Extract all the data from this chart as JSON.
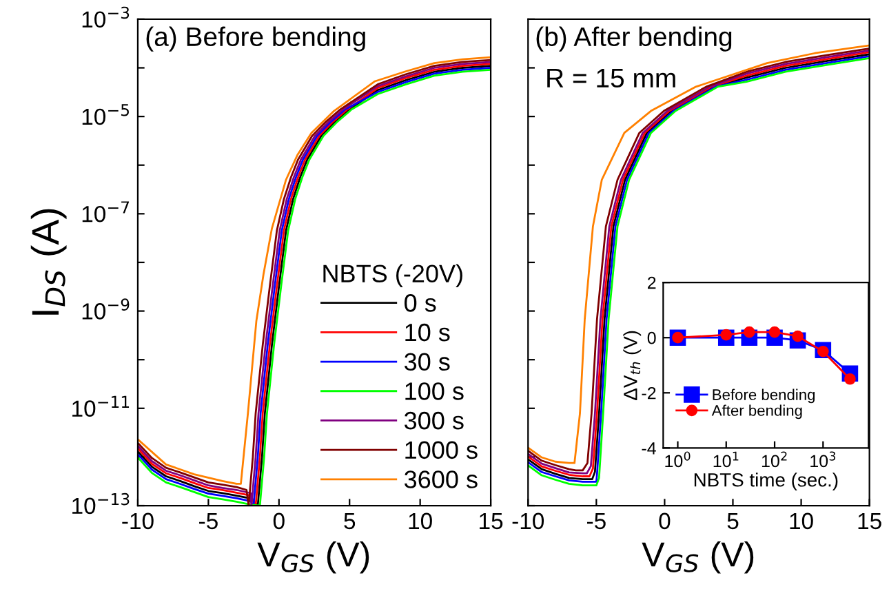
{
  "chart_data": [
    {
      "type": "line",
      "title": "(a) Before bending",
      "xlabel": "V$_{GS}$ (V)",
      "ylabel": "I$_{DS}$ (A)",
      "legend_title": "NBTS (-20V)",
      "legend": "bottom right",
      "log": "y",
      "xlim": [
        -10,
        15
      ],
      "xticks": [
        -10,
        -5,
        0,
        5,
        10,
        15
      ],
      "ylim": [
        1e-13,
        0.001
      ],
      "yticks": [
        {
          "value": 1e-13,
          "label": "10$^{−13}$"
        },
        {
          "value": 1e-12,
          "label": null
        },
        {
          "value": 1e-11,
          "label": "10$^{−11}$"
        },
        {
          "value": 1e-10,
          "label": null
        },
        {
          "value": 1e-09,
          "label": "10$^{−9}$"
        },
        {
          "value": 1e-08,
          "label": null
        },
        {
          "value": 1e-07,
          "label": "10$^{−7}$"
        },
        {
          "value": 1e-06,
          "label": null
        },
        {
          "value": 1e-05,
          "label": "10$^{−5}$"
        },
        {
          "value": 0.0001,
          "label": null
        },
        {
          "value": 0.001,
          "label": "10$^{−3}$"
        }
      ],
      "series": [
        {
          "name": "0 s",
          "color": "#000000",
          "x": [
            -10,
            -9,
            -8,
            -7,
            -6,
            -5,
            -4,
            -3,
            -2,
            -1.5,
            -1.2,
            -1,
            -0.5,
            0,
            0.5,
            1,
            1.5,
            2,
            3,
            4,
            5,
            7,
            9,
            11,
            13,
            15
          ],
          "values": [
            1.3e-12,
            6.3e-13,
            4e-13,
            3.2e-13,
            2.5e-13,
            2e-13,
            1.8e-13,
            1.6e-13,
            1.4e-13,
            1e-13,
            1e-12,
            7.9e-12,
            2e-10,
            3.2e-09,
            4.5e-08,
            2e-07,
            5.6e-07,
            1.3e-06,
            4e-06,
            7.9e-06,
            1.4e-05,
            3.5e-05,
            5.6e-05,
            8.3e-05,
            0.0001,
            0.00011
          ]
        },
        {
          "name": "10 s",
          "color": "#ff0000",
          "x": [
            -10,
            -9,
            -8,
            -7,
            -6,
            -5,
            -4,
            -3,
            -2,
            -1.65,
            -1.35,
            -1.15,
            -0.65,
            -0.15,
            0.35,
            0.85,
            1.35,
            1.85,
            2.85,
            3.85,
            4.85,
            7,
            9,
            11,
            13,
            15
          ],
          "values": [
            1.5e-12,
            7.2e-13,
            4.6e-13,
            3.7e-13,
            2.9e-13,
            2.3e-13,
            2.1e-13,
            1.84e-13,
            1.61e-13,
            1e-13,
            1e-12,
            7.9e-12,
            2e-10,
            3.2e-09,
            4.5e-08,
            2e-07,
            5.6e-07,
            1.3e-06,
            4e-06,
            7.9e-06,
            1.4e-05,
            3.85e-05,
            6.2e-05,
            9.1e-05,
            0.00011,
            0.000121
          ]
        },
        {
          "name": "30 s",
          "color": "#0000ff",
          "x": [
            -10,
            -9,
            -8,
            -7,
            -6,
            -5,
            -4,
            -3,
            -2,
            -1.8,
            -1.5,
            -1.3,
            -0.8,
            -0.3,
            0.2,
            0.7,
            1.2,
            1.7,
            2.7,
            3.7,
            4.7,
            7,
            9,
            11,
            13,
            15
          ],
          "values": [
            1.14e-12,
            5.5e-13,
            3.5e-13,
            2.8e-13,
            2.2e-13,
            1.76e-13,
            1.58e-13,
            1.41e-13,
            1.23e-13,
            1e-13,
            1e-12,
            7.9e-12,
            2e-10,
            3.2e-09,
            4.5e-08,
            2e-07,
            5.6e-07,
            1.3e-06,
            4e-06,
            7.9e-06,
            1.4e-05,
            3.2e-05,
            5.1e-05,
            7.6e-05,
            9.1e-05,
            0.0001
          ]
        },
        {
          "name": "100 s",
          "color": "#00ff00",
          "x": [
            -10,
            -9,
            -8,
            -7,
            -6,
            -5,
            -4,
            -3,
            -2,
            -1.35,
            -1.05,
            -0.85,
            -0.35,
            0.15,
            0.65,
            1.15,
            1.65,
            2.15,
            3.15,
            4.15,
            5.15,
            7,
            9,
            11,
            13,
            15
          ],
          "values": [
            9.8e-13,
            4.7e-13,
            3e-13,
            2.4e-13,
            1.9e-13,
            1.5e-13,
            1.35e-13,
            1.2e-13,
            1.05e-13,
            1e-13,
            1e-12,
            7.9e-12,
            2e-10,
            3.2e-09,
            4.5e-08,
            2e-07,
            5.6e-07,
            1.3e-06,
            4e-06,
            7.9e-06,
            1.4e-05,
            2.9e-05,
            4.6e-05,
            6.9e-05,
            8.3e-05,
            9.1e-05
          ]
        },
        {
          "name": "300 s",
          "color": "#800080",
          "x": [
            -10,
            -9,
            -8,
            -7,
            -6,
            -5,
            -4,
            -3,
            -2,
            -1.95,
            -1.65,
            -1.45,
            -0.95,
            -0.45,
            0.05,
            0.55,
            1.05,
            1.55,
            2.55,
            3.55,
            4.55,
            7,
            9,
            11,
            13,
            15
          ],
          "values": [
            1.7e-12,
            8.2e-13,
            5.2e-13,
            4.2e-13,
            3.3e-13,
            2.6e-13,
            2.3e-13,
            2.1e-13,
            1.8e-13,
            1e-13,
            1e-12,
            7.9e-12,
            2e-10,
            3.2e-09,
            4.5e-08,
            2e-07,
            5.6e-07,
            1.3e-06,
            4e-06,
            7.9e-06,
            1.4e-05,
            4.2e-05,
            6.7e-05,
            0.0001,
            0.00012,
            0.000132
          ]
        },
        {
          "name": "1000 s",
          "color": "#800000",
          "x": [
            -10,
            -9,
            -8,
            -7,
            -6,
            -5,
            -4,
            -3,
            -2.3,
            -2.15,
            -1.85,
            -1.65,
            -1.15,
            -0.65,
            -0.15,
            0.35,
            0.85,
            1.35,
            2.35,
            3.35,
            4.35,
            7,
            9,
            11,
            13,
            15
          ],
          "values": [
            1.95e-12,
            9.5e-13,
            6e-13,
            4.8e-13,
            3.8e-13,
            3e-13,
            2.7e-13,
            2.4e-13,
            2.1e-13,
            1e-13,
            1e-12,
            7.9e-12,
            2e-10,
            3.2e-09,
            4.5e-08,
            2e-07,
            5.6e-07,
            1.3e-06,
            4e-06,
            7.9e-06,
            1.4e-05,
            4.6e-05,
            7.4e-05,
            0.00011,
            0.000132,
            0.000145
          ]
        },
        {
          "name": "3600 s",
          "color": "#ff8000",
          "x": [
            -10,
            -8,
            -6,
            -4,
            -3,
            -2.7,
            -2.2,
            -1.6,
            -1.1,
            -0.5,
            0.5,
            1.3,
            2.3,
            3.9,
            6.8,
            9,
            11,
            13,
            15
          ],
          "values": [
            2.3e-12,
            7e-13,
            4.4e-13,
            3.2e-13,
            2.8e-13,
            2.8e-13,
            7.9e-12,
            6.3e-10,
            5.6e-09,
            5e-08,
            5e-07,
            1.6e-06,
            4.6e-06,
            1.3e-05,
            5.3e-05,
            8.5e-05,
            0.000125,
            0.00015,
            0.000165
          ]
        }
      ]
    },
    {
      "type": "line",
      "title": "(b) After bending",
      "xlabel": "V$_{GS}$ (V)",
      "annotations": [
        "R = 15 mm"
      ],
      "log": "y",
      "tick_labels": "x",
      "xlim": [
        -10,
        15
      ],
      "xticks": [
        -10,
        -5,
        0,
        5,
        10,
        15
      ],
      "ylim": [
        1e-13,
        0.001
      ],
      "yticks": [
        {
          "value": 1e-13,
          "label": null
        },
        {
          "value": 1e-12,
          "label": null
        },
        {
          "value": 1e-11,
          "label": null
        },
        {
          "value": 1e-10,
          "label": null
        },
        {
          "value": 1e-09,
          "label": null
        },
        {
          "value": 1e-08,
          "label": null
        },
        {
          "value": 1e-07,
          "label": null
        },
        {
          "value": 1e-06,
          "label": null
        },
        {
          "value": 1e-05,
          "label": null
        },
        {
          "value": 0.0001,
          "label": null
        },
        {
          "value": 0.001,
          "label": null
        }
      ],
      "series": [
        {
          "color": "#000000",
          "x": [
            -10,
            -9,
            -8,
            -7,
            -6,
            -5.3,
            -5.1,
            -4.8,
            -4.4,
            -3.75,
            -2.9,
            -1.3,
            0.5,
            3.6,
            6,
            8.85,
            12,
            15
          ],
          "values": [
            8.9e-13,
            5.6e-13,
            4.5e-13,
            3.7e-13,
            3.5e-13,
            3.5e-13,
            5e-13,
            7.9e-12,
            6.8e-10,
            5.5e-08,
            5e-07,
            4.6e-06,
            1.3e-05,
            4.1e-05,
            6.3e-05,
            0.0001,
            0.00014,
            0.00019
          ]
        },
        {
          "color": "#ff0000",
          "x": [
            -10,
            -9,
            -8,
            -7,
            -6,
            -5.5,
            -5.25,
            -4.95,
            -4.55,
            -3.9,
            -3.05,
            -1.45,
            0.35,
            3.45,
            6,
            8.85,
            12,
            15
          ],
          "values": [
            1.02e-12,
            6.4e-13,
            5.2e-13,
            4.3e-13,
            4e-13,
            4e-13,
            5.8e-13,
            7.9e-12,
            6.8e-10,
            5.5e-08,
            5e-07,
            4.6e-06,
            1.3e-05,
            4.1e-05,
            6.9e-05,
            0.00011,
            0.000154,
            0.00021
          ]
        },
        {
          "color": "#0000ff",
          "x": [
            -10,
            -9,
            -8,
            -7,
            -6,
            -5,
            -4.95,
            -4.65,
            -4.25,
            -3.6,
            -2.75,
            -1.15,
            0.65,
            3.75,
            6,
            8.85,
            12,
            15
          ],
          "values": [
            7.8e-13,
            4.9e-13,
            4e-13,
            3.3e-13,
            3.1e-13,
            3.1e-13,
            4.4e-13,
            7.9e-12,
            6.8e-10,
            5.5e-08,
            5e-07,
            4.6e-06,
            1.3e-05,
            4.1e-05,
            5.7e-05,
            9.1e-05,
            0.000127,
            0.000173
          ]
        },
        {
          "color": "#00ff00",
          "x": [
            -10,
            -9,
            -8,
            -7,
            -6,
            -5,
            -4.8,
            -4.5,
            -4.1,
            -3.45,
            -2.6,
            -1,
            0.8,
            3.9,
            6,
            8.85,
            12,
            15
          ],
          "values": [
            6.7e-13,
            4.2e-13,
            3.4e-13,
            2.8e-13,
            2.6e-13,
            2.6e-13,
            3.7e-13,
            7.9e-12,
            6.8e-10,
            5.5e-08,
            5e-07,
            4.6e-06,
            1.3e-05,
            4.1e-05,
            5.2e-05,
            8.3e-05,
            0.000116,
            0.000158
          ]
        },
        {
          "color": "#800080",
          "x": [
            -10,
            -9,
            -8,
            -7,
            -6,
            -5.7,
            -5.4,
            -5.1,
            -4.7,
            -4.05,
            -3.2,
            -1.6,
            0.2,
            3.3,
            6,
            8.85,
            12,
            15
          ],
          "values": [
            1.16e-12,
            7.3e-13,
            5.9e-13,
            4.8e-13,
            4.6e-13,
            4.6e-13,
            6.5e-13,
            7.9e-12,
            6.8e-10,
            5.5e-08,
            5e-07,
            4.6e-06,
            1.3e-05,
            4.1e-05,
            7.6e-05,
            0.00012,
            0.000168,
            0.000228
          ]
        },
        {
          "color": "#800000",
          "x": [
            -10,
            -9,
            -8,
            -7,
            -6.5,
            -6,
            -5.65,
            -5.35,
            -4.95,
            -4.3,
            -3.45,
            -1.85,
            -0.05,
            3.05,
            6,
            8.85,
            12,
            15
          ],
          "values": [
            1.34e-12,
            8.4e-13,
            6.8e-13,
            5.6e-13,
            5.3e-13,
            5.3e-13,
            7.5e-13,
            7.9e-12,
            6.8e-10,
            5.5e-08,
            5e-07,
            4.6e-06,
            1.3e-05,
            4.1e-05,
            8.3e-05,
            0.000132,
            0.000185,
            0.00025
          ]
        },
        {
          "color": "#ff8000",
          "x": [
            -10,
            -9,
            -8,
            -7,
            -6.6,
            -6.2,
            -5.85,
            -5.25,
            -4.6,
            -2.95,
            -1,
            2.3,
            7.5,
            11,
            15
          ],
          "values": [
            1.55e-12,
            9.8e-13,
            8e-13,
            7.5e-13,
            7.5e-13,
            7.9e-12,
            6.8e-10,
            5.5e-08,
            5e-07,
            4.6e-06,
            1.3e-05,
            4.1e-05,
            0.000125,
            0.0002,
            0.00029
          ]
        }
      ]
    },
    {
      "type": "line",
      "xlabel": "NBTS time (sec.)",
      "ylabel": "ΔV$_{th}$ (V)",
      "legend": "bottom left",
      "log": "x",
      "xlim": [
        0.5,
        8700
      ],
      "xticks": [
        {
          "value": 1,
          "label": "10$^{0}$"
        },
        {
          "value": 10,
          "label": "10$^{1}$"
        },
        {
          "value": 100,
          "label": "10$^{2}$"
        },
        {
          "value": 1000,
          "label": "10$^{3}$"
        }
      ],
      "ylim": [
        -4,
        2
      ],
      "yticks": [
        -4,
        -2,
        0,
        2
      ],
      "series": [
        {
          "name": "Before bending",
          "color": "#0000ff",
          "marker": "square",
          "x": [
            1,
            10,
            30,
            100,
            300,
            1000,
            3600
          ],
          "values": [
            0,
            0,
            0,
            0,
            -0.1,
            -0.45,
            -1.3
          ]
        },
        {
          "name": "After bending",
          "color": "#ff0000",
          "marker": "circle",
          "x": [
            1,
            10,
            30,
            100,
            300,
            1000,
            3600
          ],
          "values": [
            0,
            0.1,
            0.2,
            0.2,
            0.05,
            -0.5,
            -1.5
          ]
        }
      ]
    }
  ]
}
